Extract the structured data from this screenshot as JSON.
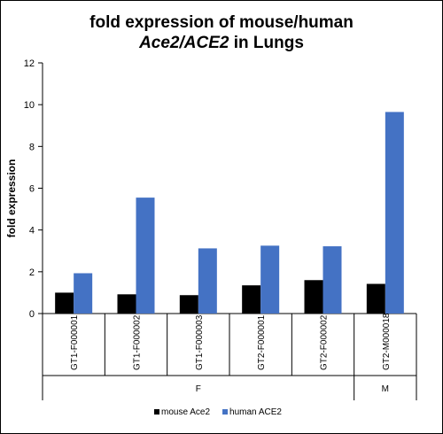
{
  "chart_data": {
    "type": "bar",
    "title_line1": "fold expression of mouse/human",
    "title_line2_part1": "Ace2/ACE2",
    "title_line2_part2": " in Lungs",
    "ylabel": "fold expression",
    "xlabel": "",
    "ylim": [
      0,
      12
    ],
    "yticks": [
      0,
      2,
      4,
      6,
      8,
      10,
      12
    ],
    "categories": [
      "GT1-F000001",
      "GT1-F000002",
      "GT1-F000003",
      "GT2-F000001",
      "GT2-F000002",
      "GT2-M000018"
    ],
    "groups": [
      {
        "label": "F",
        "count": 5
      },
      {
        "label": "M",
        "count": 1
      }
    ],
    "series": [
      {
        "name": "mouse Ace2",
        "color": "#000000",
        "values": [
          1.0,
          0.92,
          0.88,
          1.35,
          1.6,
          1.42
        ]
      },
      {
        "name": "human ACE2",
        "color": "#4472C4",
        "values": [
          1.93,
          5.55,
          3.12,
          3.25,
          3.22,
          9.65
        ]
      }
    ],
    "grid": false,
    "legend_position": "bottom"
  }
}
